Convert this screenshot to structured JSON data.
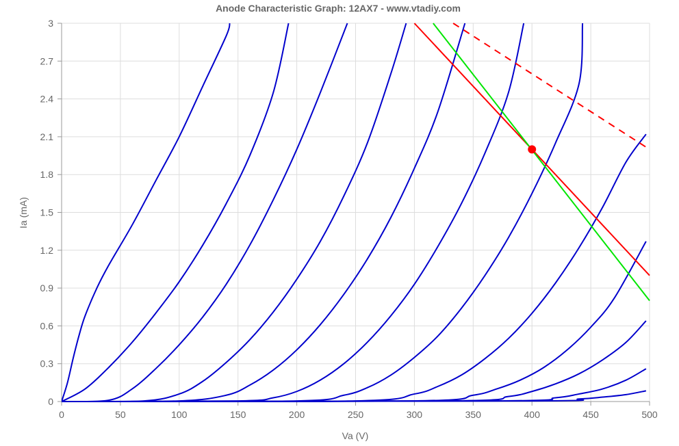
{
  "chart_data": {
    "type": "line",
    "title": "Anode Characteristic Graph: 12AX7 - www.vtadiy.com",
    "xlabel": "Va (V)",
    "ylabel": "Ia (mA)",
    "xlim": [
      0,
      500
    ],
    "ylim": [
      0,
      3
    ],
    "x_ticks": [
      "0",
      "50",
      "100",
      "150",
      "200",
      "250",
      "300",
      "350",
      "400",
      "450",
      "500"
    ],
    "y_ticks": [
      "0",
      "0.3",
      "0.6",
      "0.9",
      "1.2",
      "1.5",
      "1.8",
      "2.1",
      "2.4",
      "2.7",
      "3"
    ],
    "grid": true,
    "colors": {
      "curves": "#0000cc",
      "load_line": "#ff0000",
      "ac_load_line": "#ff0000",
      "tangent": "#00e600",
      "operating_point": "#ff0000",
      "grid": "#dddddd",
      "axis": "#999999"
    },
    "curves": [
      {
        "x": [
          0,
          5,
          10,
          15,
          20,
          30,
          40,
          60,
          80,
          100,
          120,
          140,
          143
        ],
        "y": [
          0,
          0.15,
          0.35,
          0.53,
          0.68,
          0.9,
          1.08,
          1.4,
          1.75,
          2.1,
          2.5,
          2.9,
          3.0
        ]
      },
      {
        "x": [
          0,
          20,
          40,
          60,
          80,
          100,
          120,
          140,
          160,
          180,
          193
        ],
        "y": [
          0,
          0.1,
          0.27,
          0.47,
          0.7,
          0.95,
          1.24,
          1.57,
          1.95,
          2.45,
          3.0
        ]
      },
      {
        "x": [
          0,
          40,
          60,
          80,
          100,
          120,
          140,
          160,
          180,
          200,
          220,
          243
        ],
        "y": [
          0,
          0.01,
          0.1,
          0.26,
          0.45,
          0.67,
          0.93,
          1.24,
          1.6,
          2.0,
          2.45,
          3.0
        ]
      },
      {
        "x": [
          0,
          70,
          100,
          120,
          140,
          160,
          180,
          200,
          220,
          240,
          260,
          280,
          293
        ],
        "y": [
          0,
          0.005,
          0.06,
          0.16,
          0.31,
          0.49,
          0.71,
          0.97,
          1.27,
          1.63,
          2.05,
          2.6,
          3.0
        ]
      },
      {
        "x": [
          0,
          100,
          140,
          160,
          180,
          200,
          220,
          240,
          260,
          280,
          300,
          320,
          343
        ],
        "y": [
          0,
          0.005,
          0.05,
          0.13,
          0.25,
          0.41,
          0.61,
          0.85,
          1.13,
          1.46,
          1.85,
          2.3,
          3.0
        ]
      },
      {
        "x": [
          0,
          150,
          180,
          200,
          220,
          240,
          260,
          280,
          300,
          320,
          340,
          360,
          380,
          393
        ],
        "y": [
          0,
          0.005,
          0.03,
          0.08,
          0.17,
          0.3,
          0.47,
          0.68,
          0.93,
          1.23,
          1.57,
          1.97,
          2.45,
          3.0
        ]
      },
      {
        "x": [
          0,
          200,
          240,
          260,
          280,
          300,
          320,
          340,
          360,
          380,
          400,
          420,
          440,
          443
        ],
        "y": [
          0,
          0.005,
          0.05,
          0.11,
          0.21,
          0.35,
          0.52,
          0.74,
          1.0,
          1.3,
          1.65,
          2.05,
          2.52,
          3.0
        ]
      },
      {
        "x": [
          0,
          250,
          300,
          320,
          340,
          360,
          380,
          400,
          420,
          440,
          460,
          480,
          497
        ],
        "y": [
          0,
          0.005,
          0.06,
          0.12,
          0.21,
          0.34,
          0.5,
          0.7,
          0.94,
          1.22,
          1.54,
          1.9,
          2.12
        ]
      },
      {
        "x": [
          0,
          300,
          350,
          370,
          390,
          410,
          430,
          450,
          470,
          497
        ],
        "y": [
          0,
          0.005,
          0.05,
          0.1,
          0.17,
          0.27,
          0.41,
          0.59,
          0.82,
          1.27
        ]
      },
      {
        "x": [
          0,
          330,
          380,
          400,
          420,
          440,
          460,
          480,
          497
        ],
        "y": [
          0,
          0.005,
          0.04,
          0.08,
          0.14,
          0.22,
          0.33,
          0.47,
          0.64
        ]
      },
      {
        "x": [
          0,
          370,
          420,
          440,
          460,
          480,
          497
        ],
        "y": [
          0,
          0.005,
          0.03,
          0.06,
          0.1,
          0.17,
          0.26
        ]
      },
      {
        "x": [
          0,
          400,
          440,
          460,
          480,
          497
        ],
        "y": [
          0,
          0.005,
          0.02,
          0.035,
          0.055,
          0.085
        ]
      }
    ],
    "load_line": {
      "x": [
        300,
        500
      ],
      "y": [
        3.0,
        1.0
      ]
    },
    "ac_load_line": {
      "x": [
        333,
        500
      ],
      "y": [
        3.0,
        2.0
      ]
    },
    "tangent_line": {
      "x": [
        316,
        500
      ],
      "y": [
        3.0,
        0.8
      ]
    },
    "operating_point": {
      "x": 400,
      "y": 2.0
    }
  }
}
